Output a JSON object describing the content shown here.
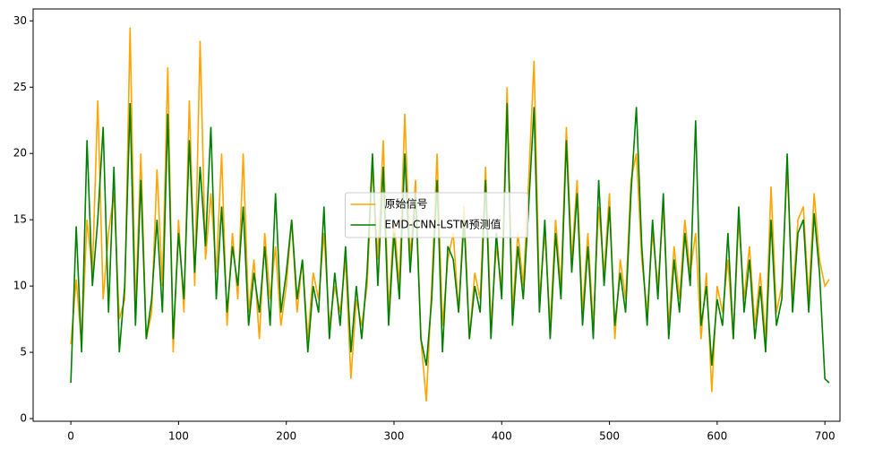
{
  "chart_data": {
    "type": "line",
    "x": [
      0,
      5,
      10,
      15,
      20,
      25,
      30,
      35,
      40,
      45,
      50,
      55,
      60,
      65,
      70,
      75,
      80,
      85,
      90,
      95,
      100,
      105,
      110,
      115,
      120,
      125,
      130,
      135,
      140,
      145,
      150,
      155,
      160,
      165,
      170,
      175,
      180,
      185,
      190,
      195,
      200,
      205,
      210,
      215,
      220,
      225,
      230,
      235,
      240,
      245,
      250,
      255,
      260,
      265,
      270,
      275,
      280,
      285,
      290,
      295,
      300,
      305,
      310,
      315,
      320,
      325,
      330,
      335,
      340,
      345,
      350,
      355,
      360,
      365,
      370,
      375,
      380,
      385,
      390,
      395,
      400,
      405,
      410,
      415,
      420,
      425,
      430,
      435,
      440,
      445,
      450,
      455,
      460,
      465,
      470,
      475,
      480,
      485,
      490,
      495,
      500,
      505,
      510,
      515,
      520,
      525,
      530,
      535,
      540,
      545,
      550,
      555,
      560,
      565,
      570,
      575,
      580,
      585,
      590,
      595,
      600,
      605,
      610,
      615,
      620,
      625,
      630,
      635,
      640,
      645,
      650,
      655,
      660,
      665,
      670,
      675,
      680,
      685,
      690,
      695,
      700,
      704
    ],
    "series": [
      {
        "name": "原始信号",
        "color": "#ffa500",
        "values": [
          5.6,
          10.5,
          5.5,
          15,
          11,
          24,
          9,
          14,
          17,
          7.5,
          9,
          29.5,
          8,
          20,
          6,
          8,
          18.8,
          10,
          26.5,
          5,
          15,
          8,
          24,
          10,
          28.5,
          12,
          17,
          11,
          20,
          7,
          14,
          9,
          20,
          8,
          12,
          6,
          14,
          9,
          13,
          7,
          10,
          15,
          8,
          12,
          6,
          11,
          9,
          14,
          7,
          10,
          8,
          12,
          3,
          9,
          7,
          10,
          19,
          12,
          21,
          8,
          15,
          10,
          23,
          12,
          18,
          6,
          1.3,
          10,
          20,
          7,
          12,
          14,
          8,
          16,
          6,
          11,
          9,
          19,
          7,
          13,
          10,
          25,
          8,
          14,
          10,
          18,
          27,
          9,
          14,
          7,
          15,
          10,
          22,
          12,
          18,
          8,
          14,
          7,
          16,
          11,
          17,
          6,
          12,
          9,
          18,
          20,
          12,
          8,
          14,
          10,
          16,
          7,
          13,
          9,
          15,
          11,
          14,
          6,
          11,
          2,
          10,
          8,
          12,
          6,
          15,
          9,
          13,
          7,
          11,
          6,
          17.5,
          8,
          10,
          19,
          9,
          15,
          16,
          9,
          17,
          12,
          10,
          10.5
        ]
      },
      {
        "name": "EMD-CNN-LSTM预测值",
        "color": "#008000",
        "values": [
          2.7,
          14.5,
          5,
          21,
          10,
          15,
          22,
          8,
          19,
          5,
          10,
          23.8,
          7,
          18,
          6,
          9,
          15,
          8,
          23,
          6,
          14,
          9,
          21,
          11,
          19,
          13,
          22,
          9,
          16,
          8,
          13,
          10,
          16,
          7,
          11,
          8,
          13,
          7,
          17,
          8,
          11,
          15,
          9,
          12,
          5,
          10,
          8,
          16,
          6,
          11,
          7,
          13,
          5,
          10,
          6,
          11,
          20,
          10,
          19,
          7,
          14,
          9,
          20,
          11,
          17,
          6,
          4,
          9,
          18,
          5,
          13,
          12,
          8,
          15,
          6,
          10,
          8,
          18,
          6,
          14,
          9,
          23.8,
          7,
          13,
          9,
          16,
          23.5,
          8,
          15,
          6,
          14,
          9,
          21,
          11,
          17,
          7,
          13,
          6,
          18,
          10,
          16,
          7,
          11,
          8,
          17,
          23.5,
          13,
          7,
          15,
          9,
          17,
          6,
          12,
          8,
          14,
          10,
          22.5,
          7,
          10,
          4,
          9,
          7,
          14,
          6,
          16,
          8,
          12,
          6,
          10,
          5,
          15,
          7,
          9,
          20,
          8,
          14,
          15,
          8,
          15.5,
          11,
          3,
          2.7
        ]
      }
    ],
    "xlim": [
      -35,
      714
    ],
    "ylim": [
      -0.2,
      30.9
    ],
    "xticks": [
      0,
      100,
      200,
      300,
      400,
      500,
      600,
      700
    ],
    "yticks": [
      0,
      5,
      10,
      15,
      20,
      25,
      30
    ],
    "grid": false,
    "legend": "center"
  }
}
